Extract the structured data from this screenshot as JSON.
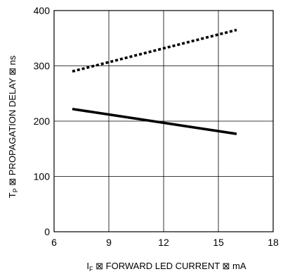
{
  "chart_data": {
    "type": "line",
    "title": "",
    "xlabel": {
      "symbol": "I",
      "subscript": "F",
      "text": " ⊠ FORWARD LED CURRENT ⊠ mA"
    },
    "ylabel": {
      "symbol": "T",
      "subscript": "P",
      "text": " ⊠ PROPAGATION DELAY ⊠ ns"
    },
    "xlim": [
      6,
      18
    ],
    "ylim": [
      0,
      400
    ],
    "xticks": [
      6,
      9,
      12,
      15,
      18
    ],
    "yticks": [
      0,
      100,
      200,
      300,
      400
    ],
    "xtick_labels": [
      "6",
      "9",
      "12",
      "15",
      "18"
    ],
    "ytick_labels": [
      "0",
      "100",
      "200",
      "300",
      "400"
    ],
    "grid": true,
    "series": [
      {
        "style": "dotted",
        "color": "#000000",
        "x": [
          7,
          16
        ],
        "y": [
          290,
          365
        ]
      },
      {
        "style": "solid",
        "color": "#000000",
        "x": [
          7,
          16
        ],
        "y": [
          222,
          177
        ]
      }
    ]
  }
}
